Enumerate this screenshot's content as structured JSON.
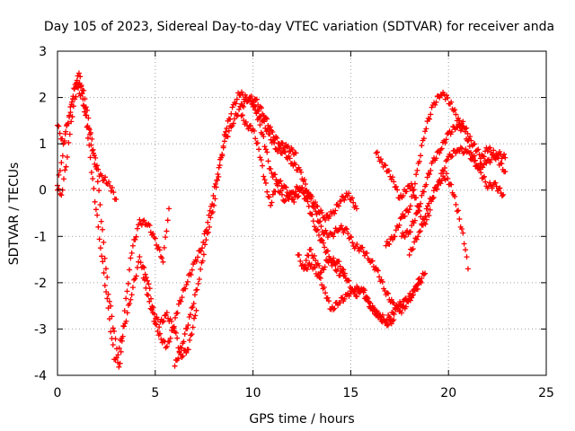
{
  "chart_data": {
    "type": "scatter",
    "title": "Day 105 of 2023, Sidereal Day-to-day VTEC variation (SDTVAR) for receiver anda",
    "xlabel": "GPS time / hours",
    "ylabel": "SDTVAR / TECUs",
    "xlim": [
      0,
      25
    ],
    "ylim": [
      -4,
      3
    ],
    "xticks": [
      0,
      5,
      10,
      15,
      20,
      25
    ],
    "yticks": [
      -4,
      -3,
      -2,
      -1,
      0,
      1,
      2,
      3
    ],
    "xtick_labels": [
      "0",
      "5",
      "10",
      "15",
      "20",
      "25"
    ],
    "ytick_labels": [
      "-4",
      "-3",
      "-2",
      "-1",
      "0",
      "1",
      "2",
      "3"
    ],
    "grid": true,
    "marker": "+",
    "color": "#ff0000",
    "series": [
      {
        "name": "trace-1",
        "x": [
          0,
          0.2,
          0.4,
          0.6,
          0.8,
          1.0,
          1.2,
          1.5,
          1.8,
          2.2,
          2.6,
          2.9,
          3.2,
          3.3,
          3.5,
          3.8,
          4.2,
          4.6,
          5.0,
          5.4,
          5.7
        ],
        "y": [
          0.1,
          0.6,
          1.2,
          1.6,
          2.0,
          2.4,
          2.2,
          1.4,
          0.2,
          -1.2,
          -2.6,
          -3.6,
          -3.8,
          -3.2,
          -2.4,
          -1.3,
          -0.7,
          -0.7,
          -1.1,
          -1.5,
          -0.4
        ]
      },
      {
        "name": "trace-2",
        "x": [
          0,
          0.3,
          0.6,
          0.9,
          1.1,
          1.4,
          1.7,
          2.0,
          2.3,
          2.6,
          2.9,
          3.1,
          3.4,
          3.8,
          4.2,
          4.6,
          4.9,
          5.2,
          5.6,
          6.0,
          6.3,
          6.7,
          7.1
        ],
        "y": [
          1.4,
          1.0,
          1.6,
          2.3,
          2.5,
          2.0,
          1.2,
          0.5,
          -0.9,
          -2.2,
          -3.1,
          -3.5,
          -3.0,
          -2.2,
          -1.5,
          -1.9,
          -2.6,
          -2.9,
          -2.7,
          -3.0,
          -3.6,
          -3.4,
          -2.6
        ]
      },
      {
        "name": "trace-3",
        "x": [
          0,
          0.2,
          0.5,
          0.7,
          1.0,
          1.3,
          1.6,
          1.9,
          2.2,
          2.5,
          2.8,
          3.0
        ],
        "y": [
          0.0,
          -0.1,
          0.7,
          1.5,
          2.2,
          2.0,
          1.3,
          0.6,
          0.3,
          0.2,
          0.0,
          -0.2
        ]
      },
      {
        "name": "trace-4",
        "x": [
          4.4,
          4.7,
          5.0,
          5.3,
          5.6,
          5.9,
          6.2,
          6.6,
          7.0,
          7.4,
          7.8,
          8.2,
          8.6,
          9.0,
          9.4,
          9.8,
          10.2,
          10.6,
          11.0,
          11.4,
          11.8,
          12.2
        ],
        "y": [
          -1.9,
          -2.4,
          -2.9,
          -3.2,
          -3.4,
          -3.0,
          -2.5,
          -2.0,
          -1.6,
          -1.2,
          -0.5,
          0.4,
          1.1,
          1.5,
          1.8,
          2.0,
          1.9,
          1.6,
          1.2,
          1.0,
          0.9,
          0.8
        ]
      },
      {
        "name": "trace-5",
        "x": [
          6.0,
          6.4,
          6.8,
          7.2,
          7.6,
          8.0,
          8.3,
          8.6,
          9.0,
          9.3,
          9.6,
          10.0,
          10.3,
          10.6,
          10.9,
          11.3,
          11.7,
          12.1,
          12.5,
          12.9,
          13.3,
          13.7,
          14.1,
          14.5,
          14.9,
          15.3
        ],
        "y": [
          -3.8,
          -3.3,
          -2.7,
          -2.0,
          -1.1,
          -0.3,
          0.5,
          1.3,
          1.8,
          2.1,
          2.0,
          1.9,
          1.5,
          1.0,
          0.4,
          0.2,
          0.0,
          -0.2,
          0.0,
          -0.1,
          -0.4,
          -0.6,
          -0.5,
          -0.2,
          -0.1,
          -0.4
        ]
      },
      {
        "name": "trace-6",
        "x": [
          9.4,
          9.7,
          10.0,
          10.3,
          10.6,
          10.9,
          11.2,
          11.6,
          12.0,
          12.4,
          12.8,
          13.2,
          13.6,
          14.0,
          14.4,
          14.8,
          15.2,
          15.6,
          16.0,
          16.4,
          16.8,
          17.2
        ],
        "y": [
          1.6,
          1.4,
          1.3,
          0.9,
          0.2,
          -0.3,
          0.1,
          -0.2,
          -0.1,
          0.1,
          -0.3,
          -0.8,
          -1.2,
          -1.5,
          -1.6,
          -1.9,
          -2.3,
          -2.1,
          -2.5,
          -2.7,
          -2.9,
          -2.8
        ]
      },
      {
        "name": "trace-7",
        "x": [
          10.0,
          10.4,
          10.8,
          11.2,
          11.6,
          12.0,
          12.4,
          12.8,
          13.2,
          13.6,
          14.0,
          14.4,
          14.8,
          15.2,
          15.6,
          16.0,
          16.4,
          16.8,
          17.2,
          17.6,
          18.0,
          18.4,
          18.8
        ],
        "y": [
          1.8,
          1.6,
          1.2,
          0.9,
          0.8,
          0.6,
          0.4,
          0.0,
          -0.5,
          -0.9,
          -1.0,
          -0.8,
          -0.9,
          -1.2,
          -1.3,
          -1.5,
          -1.8,
          -2.2,
          -2.5,
          -2.6,
          -2.4,
          -2.0,
          -1.8
        ]
      },
      {
        "name": "trace-8",
        "x": [
          12.3,
          12.6,
          12.9,
          13.2,
          13.5,
          13.8,
          14.1,
          14.4,
          14.7
        ],
        "y": [
          -1.4,
          -1.7,
          -1.3,
          -1.5,
          -1.8,
          -1.5,
          -1.6,
          -1.8,
          -1.8
        ]
      },
      {
        "name": "trace-9",
        "x": [
          12.6,
          13.0,
          13.4,
          13.7,
          14.0,
          14.4,
          14.8,
          15.2,
          15.6,
          16.0,
          16.4,
          16.8,
          17.1,
          17.4,
          17.8,
          18.2,
          18.6
        ],
        "y": [
          -1.7,
          -1.6,
          -1.9,
          -2.2,
          -2.6,
          -2.4,
          -2.3,
          -2.1,
          -2.2,
          -2.5,
          -2.7,
          -2.8,
          -2.7,
          -2.5,
          -2.4,
          -2.2,
          -2.0
        ]
      },
      {
        "name": "trace-10",
        "x": [
          16.3,
          16.6,
          16.9,
          17.2,
          17.5,
          17.8,
          18.1,
          18.4,
          18.7,
          19.0,
          19.3,
          19.6,
          19.9,
          20.2,
          20.5,
          20.8,
          21.0
        ],
        "y": [
          0.8,
          0.6,
          0.4,
          0.2,
          -0.2,
          0.0,
          0.1,
          -0.3,
          -0.8,
          -0.5,
          0.0,
          0.2,
          0.3,
          0.0,
          -0.5,
          -1.1,
          -1.7
        ]
      },
      {
        "name": "trace-11",
        "x": [
          16.8,
          17.2,
          17.6,
          18.0,
          18.4,
          18.8,
          19.2,
          19.6,
          19.9,
          20.2,
          20.5,
          20.8,
          21.1,
          21.4,
          21.7,
          22.0,
          22.3,
          22.6,
          22.9
        ],
        "y": [
          -1.2,
          -1.0,
          -0.6,
          -0.4,
          0.4,
          1.3,
          1.8,
          2.1,
          2.0,
          1.8,
          1.5,
          1.4,
          1.1,
          0.9,
          0.7,
          0.9,
          0.8,
          0.6,
          0.4
        ]
      },
      {
        "name": "trace-12",
        "x": [
          17.6,
          18.0,
          18.4,
          18.8,
          19.2,
          19.6,
          20.0,
          20.4,
          20.8,
          21.2,
          21.6,
          22.0,
          22.4,
          22.8
        ],
        "y": [
          -1.0,
          -0.9,
          -0.5,
          0.1,
          0.6,
          0.9,
          1.2,
          1.4,
          1.3,
          0.8,
          0.4,
          0.1,
          0.1,
          -0.1
        ]
      },
      {
        "name": "trace-13",
        "x": [
          18.0,
          18.5,
          19.0,
          19.5,
          20.0,
          20.5,
          21.0,
          21.5,
          22.0,
          22.5,
          22.9
        ],
        "y": [
          -1.4,
          -0.9,
          -0.3,
          0.2,
          0.7,
          0.9,
          0.8,
          0.5,
          0.6,
          0.8,
          0.7
        ]
      }
    ]
  }
}
